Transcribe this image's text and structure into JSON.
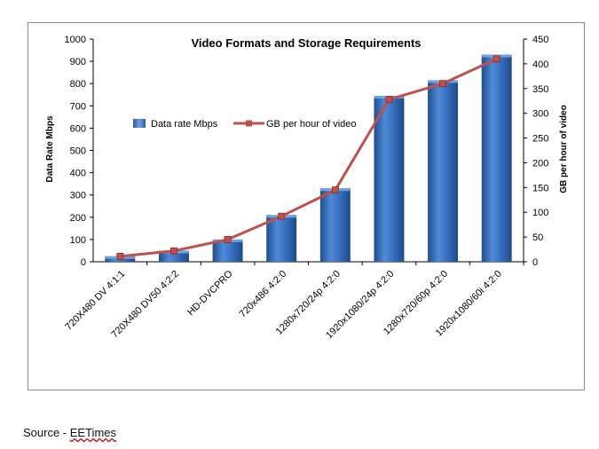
{
  "chart_data": {
    "type": "bar",
    "title": "Video Formats and Storage Requirements",
    "categories": [
      "720X480 DV 4:1:1",
      "720X480 DV50 4:2:2",
      "HD-DVCPRO",
      "720x486 4:2:0",
      "1280x720/24p 4:2:0",
      "1920x1080/24p 4:2:0",
      "1280x720/60p 4:2:0",
      "1920x1080/60i 4:2:0"
    ],
    "series": [
      {
        "name": "Data rate Mbps",
        "type": "bar",
        "axis": "left",
        "values": [
          25,
          50,
          100,
          210,
          330,
          745,
          815,
          930
        ],
        "color": "#3a73c4"
      },
      {
        "name": "GB per hour of video",
        "type": "line",
        "axis": "right",
        "values": [
          11,
          22,
          45,
          92,
          145,
          328,
          360,
          410
        ],
        "color": "#c0504d"
      }
    ],
    "ylabel": "Data Rate Mbps",
    "ylabel_right": "GB per hour of video",
    "ylim": [
      0,
      1000
    ],
    "yticks": [
      "0",
      "100",
      "200",
      "300",
      "400",
      "500",
      "600",
      "700",
      "800",
      "900",
      "1000"
    ],
    "ylim_right": [
      0,
      450
    ],
    "yticks_right": [
      "0",
      "50",
      "100",
      "150",
      "200",
      "250",
      "300",
      "350",
      "400",
      "450"
    ],
    "grid": false,
    "legend": "center-left"
  },
  "source": {
    "prefix": "Source - ",
    "link": "EETimes"
  }
}
